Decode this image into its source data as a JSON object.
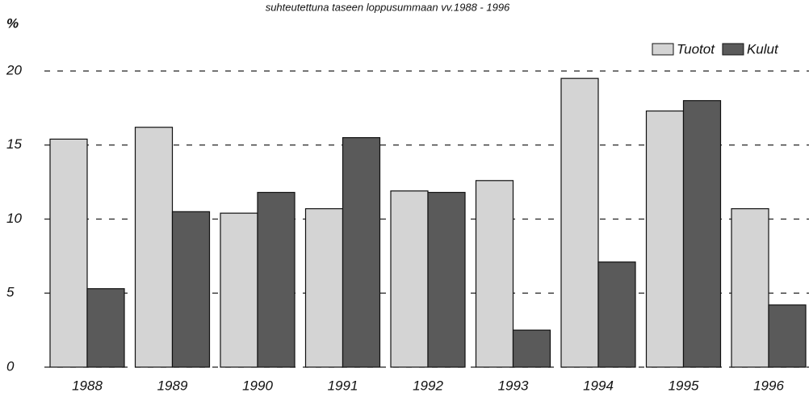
{
  "chart_data": {
    "type": "bar",
    "title": "suhteutettuna taseen loppusummaan vv.1988 - 1996",
    "y_label": "%",
    "categories": [
      "1988",
      "1989",
      "1990",
      "1991",
      "1992",
      "1993",
      "1994",
      "1995",
      "1996"
    ],
    "series": [
      {
        "name": "Tuotot",
        "color": "#d4d4d4",
        "values": [
          15.4,
          16.2,
          10.4,
          10.7,
          11.9,
          12.6,
          19.5,
          17.3,
          10.7
        ]
      },
      {
        "name": "Kulut",
        "color": "#5a5a5a",
        "values": [
          5.3,
          10.5,
          11.8,
          15.5,
          11.8,
          2.5,
          7.1,
          18.0,
          4.2
        ]
      }
    ],
    "ylim": [
      0,
      20
    ],
    "yticks": [
      0,
      5,
      10,
      15,
      20
    ],
    "grid": true,
    "legend": "top-right"
  }
}
